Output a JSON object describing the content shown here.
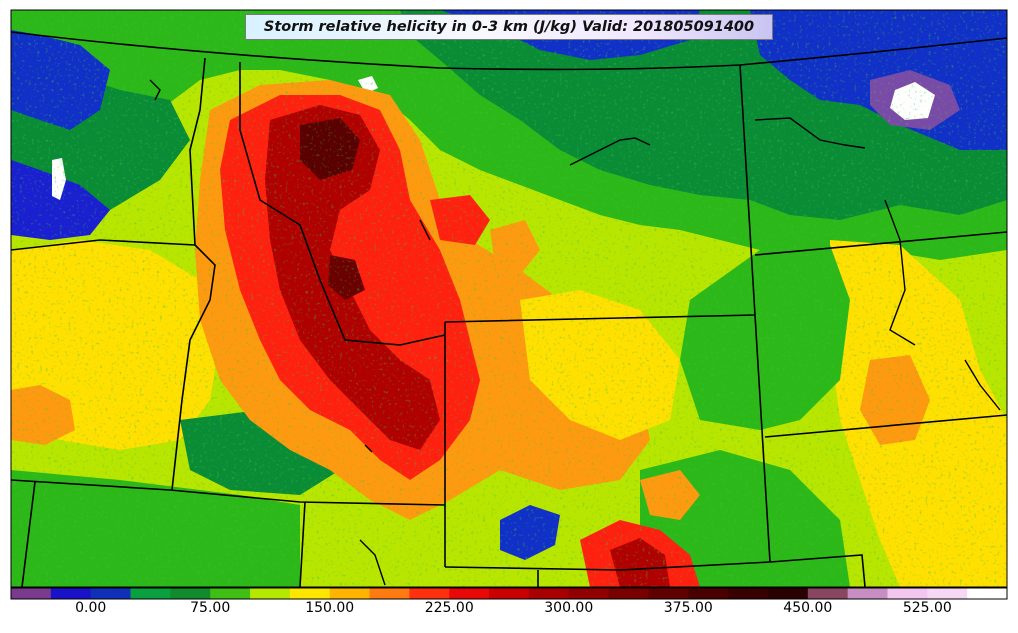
{
  "title": "Storm relative helicity in 0-3 km (J/kg) Valid: 201805091400",
  "colorbar": {
    "colors": [
      "#7a3a8e",
      "#1a12c8",
      "#1030b8",
      "#0aa040",
      "#128a2e",
      "#3fbe14",
      "#b4e800",
      "#ffe600",
      "#ffb400",
      "#ff7a10",
      "#ff3010",
      "#e80808",
      "#c80000",
      "#a80000",
      "#900000",
      "#780000",
      "#600000",
      "#4a0000",
      "#380000",
      "#2a0000",
      "#8a4660",
      "#c78ec4",
      "#f2c6ee",
      "#f7d8f4",
      "#ffffff"
    ],
    "tick_labels": [
      "0.00",
      "75.00",
      "150.00",
      "225.00",
      "300.00",
      "375.00",
      "450.00",
      "525.00"
    ]
  },
  "palette": {
    "blue": "#1030c8",
    "darkgreen": "#0a8c36",
    "green": "#2db81a",
    "lime": "#b8e600",
    "yellow": "#ffe000",
    "orange": "#ff9a10",
    "red": "#ff2010",
    "darkred": "#b00000",
    "maroon": "#5a0000",
    "purple": "#7a4aa8",
    "white": "#ffffff"
  }
}
